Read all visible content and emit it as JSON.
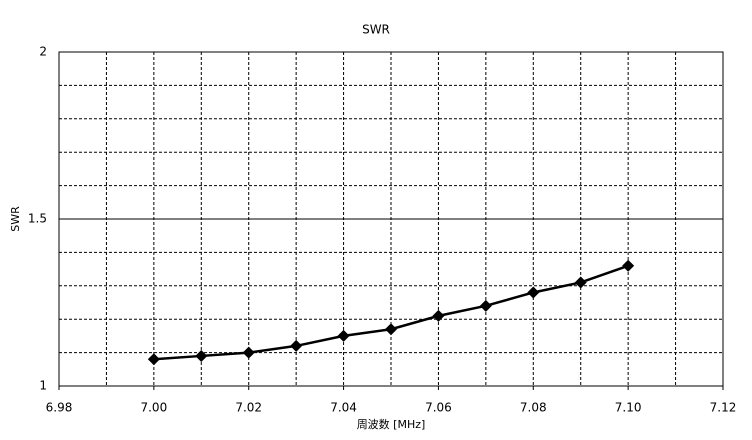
{
  "chart_data": {
    "type": "line",
    "title": "SWR",
    "xlabel": "周波数 [MHz]",
    "ylabel": "SWR",
    "x": [
      7,
      7.01,
      7.02,
      7.03,
      7.04,
      7.05,
      7.06,
      7.07,
      7.08,
      7.09,
      7.1
    ],
    "series": [
      {
        "name": "SWR",
        "color": "#000000",
        "marker": "diamond",
        "values": [
          1.08,
          1.09,
          1.1,
          1.12,
          1.15,
          1.17,
          1.21,
          1.24,
          1.28,
          1.31,
          1.36
        ]
      }
    ],
    "xlim": [
      6.98,
      7.12
    ],
    "xticks": [
      6.98,
      {
        "value": 7,
        "label": "7.00"
      },
      7.02,
      7.04,
      7.06,
      7.08,
      {
        "value": 7.1,
        "label": "7.10"
      },
      7.12
    ],
    "x_minor_gridlines": [
      6.99,
      7,
      7.01,
      7.02,
      7.03,
      7.04,
      7.05,
      7.06,
      7.07,
      7.08,
      7.09,
      7.1,
      7.11
    ],
    "ylim": [
      1,
      2
    ],
    "yticks": [
      1,
      1.5,
      2
    ],
    "y_minor_gridlines": [
      1.1,
      1.2,
      1.3,
      1.4,
      1.6,
      1.7,
      1.8,
      1.9
    ],
    "grid": true,
    "legend": false
  }
}
